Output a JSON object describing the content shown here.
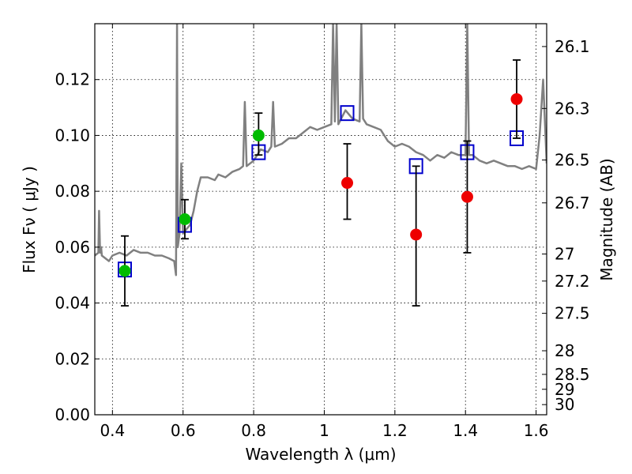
{
  "chart_data": {
    "type": "scatter",
    "xlabel": "Wavelength  λ (μm)",
    "ylabel": "Flux  Fν  ( μJy )",
    "ylabel_right": "Magnitude (AB)",
    "xlim": [
      0.35,
      1.63
    ],
    "ylim": [
      0.0,
      0.14
    ],
    "grid": true,
    "x_ticks": [
      0.4,
      0.6,
      0.8,
      1.0,
      1.2,
      1.4,
      1.6
    ],
    "x_tick_labels": [
      "0.4",
      "0.6",
      "0.8",
      "1",
      "1.2",
      "1.4",
      "1.6"
    ],
    "y_ticks": [
      0.0,
      0.02,
      0.04,
      0.06,
      0.08,
      0.1,
      0.12
    ],
    "y_tick_labels": [
      "0.00",
      "0.02",
      "0.04",
      "0.06",
      "0.08",
      "0.10",
      "0.12"
    ],
    "right_ticks": [
      {
        "mag": 26.1,
        "label": "26.1"
      },
      {
        "mag": 26.3,
        "label": "26.3"
      },
      {
        "mag": 26.5,
        "label": "26.5"
      },
      {
        "mag": 26.7,
        "label": "26.7"
      },
      {
        "mag": 27.0,
        "label": "27"
      },
      {
        "mag": 27.2,
        "label": "27.2"
      },
      {
        "mag": 27.5,
        "label": "27.5"
      },
      {
        "mag": 28.0,
        "label": "28"
      },
      {
        "mag": 28.5,
        "label": "28.5"
      },
      {
        "mag": 29.0,
        "label": "29"
      },
      {
        "mag": 30.0,
        "label": "30"
      }
    ],
    "series": [
      {
        "marker": "line",
        "color": "#808080",
        "x": [
          0.35,
          0.36,
          0.362,
          0.365,
          0.368,
          0.37,
          0.38,
          0.39,
          0.4,
          0.42,
          0.44,
          0.46,
          0.48,
          0.5,
          0.52,
          0.54,
          0.56,
          0.575,
          0.58,
          0.583,
          0.585,
          0.59,
          0.595,
          0.6,
          0.62,
          0.63,
          0.64,
          0.65,
          0.67,
          0.69,
          0.7,
          0.72,
          0.74,
          0.76,
          0.77,
          0.775,
          0.78,
          0.8,
          0.82,
          0.84,
          0.85,
          0.855,
          0.86,
          0.88,
          0.9,
          0.92,
          0.94,
          0.96,
          0.98,
          1.0,
          1.02,
          1.025,
          1.03,
          1.035,
          1.04,
          1.06,
          1.08,
          1.1,
          1.105,
          1.11,
          1.12,
          1.14,
          1.16,
          1.18,
          1.2,
          1.22,
          1.24,
          1.26,
          1.28,
          1.3,
          1.32,
          1.34,
          1.36,
          1.38,
          1.4,
          1.405,
          1.41,
          1.42,
          1.44,
          1.46,
          1.48,
          1.5,
          1.52,
          1.54,
          1.56,
          1.58,
          1.6,
          1.61,
          1.62,
          1.63
        ],
        "y": [
          0.057,
          0.058,
          0.073,
          0.058,
          0.06,
          0.057,
          0.056,
          0.055,
          0.057,
          0.058,
          0.057,
          0.059,
          0.058,
          0.058,
          0.057,
          0.057,
          0.056,
          0.055,
          0.05,
          0.14,
          0.06,
          0.065,
          0.09,
          0.065,
          0.068,
          0.073,
          0.08,
          0.085,
          0.085,
          0.084,
          0.086,
          0.085,
          0.087,
          0.088,
          0.089,
          0.112,
          0.089,
          0.091,
          0.095,
          0.094,
          0.096,
          0.112,
          0.096,
          0.097,
          0.099,
          0.099,
          0.101,
          0.103,
          0.102,
          0.103,
          0.104,
          0.14,
          0.105,
          0.14,
          0.104,
          0.109,
          0.106,
          0.105,
          0.14,
          0.106,
          0.104,
          0.103,
          0.102,
          0.098,
          0.096,
          0.097,
          0.096,
          0.094,
          0.093,
          0.091,
          0.093,
          0.092,
          0.094,
          0.093,
          0.093,
          0.14,
          0.093,
          0.093,
          0.091,
          0.09,
          0.091,
          0.09,
          0.089,
          0.089,
          0.088,
          0.089,
          0.088,
          0.1,
          0.12,
          0.09
        ]
      },
      {
        "marker": "open-square",
        "color": "#0000cc",
        "x": [
          0.435,
          0.605,
          0.814,
          1.065,
          1.26,
          1.405,
          1.545
        ],
        "y": [
          0.052,
          0.068,
          0.094,
          0.108,
          0.089,
          0.094,
          0.099
        ]
      },
      {
        "marker": "filled-circle",
        "color": "#00bb00",
        "x": [
          0.435,
          0.605,
          0.814
        ],
        "y": [
          0.0515,
          0.07,
          0.1
        ],
        "yerr_low": [
          0.039,
          0.063,
          0.093
        ],
        "yerr_high": [
          0.064,
          0.077,
          0.108
        ]
      },
      {
        "marker": "filled-circle",
        "color": "#ee0000",
        "x": [
          1.065,
          1.26,
          1.405,
          1.545
        ],
        "y": [
          0.083,
          0.0645,
          0.078,
          0.113
        ],
        "yerr_low": [
          0.07,
          0.039,
          0.058,
          0.099
        ],
        "yerr_high": [
          0.097,
          0.089,
          0.098,
          0.127
        ]
      }
    ]
  }
}
